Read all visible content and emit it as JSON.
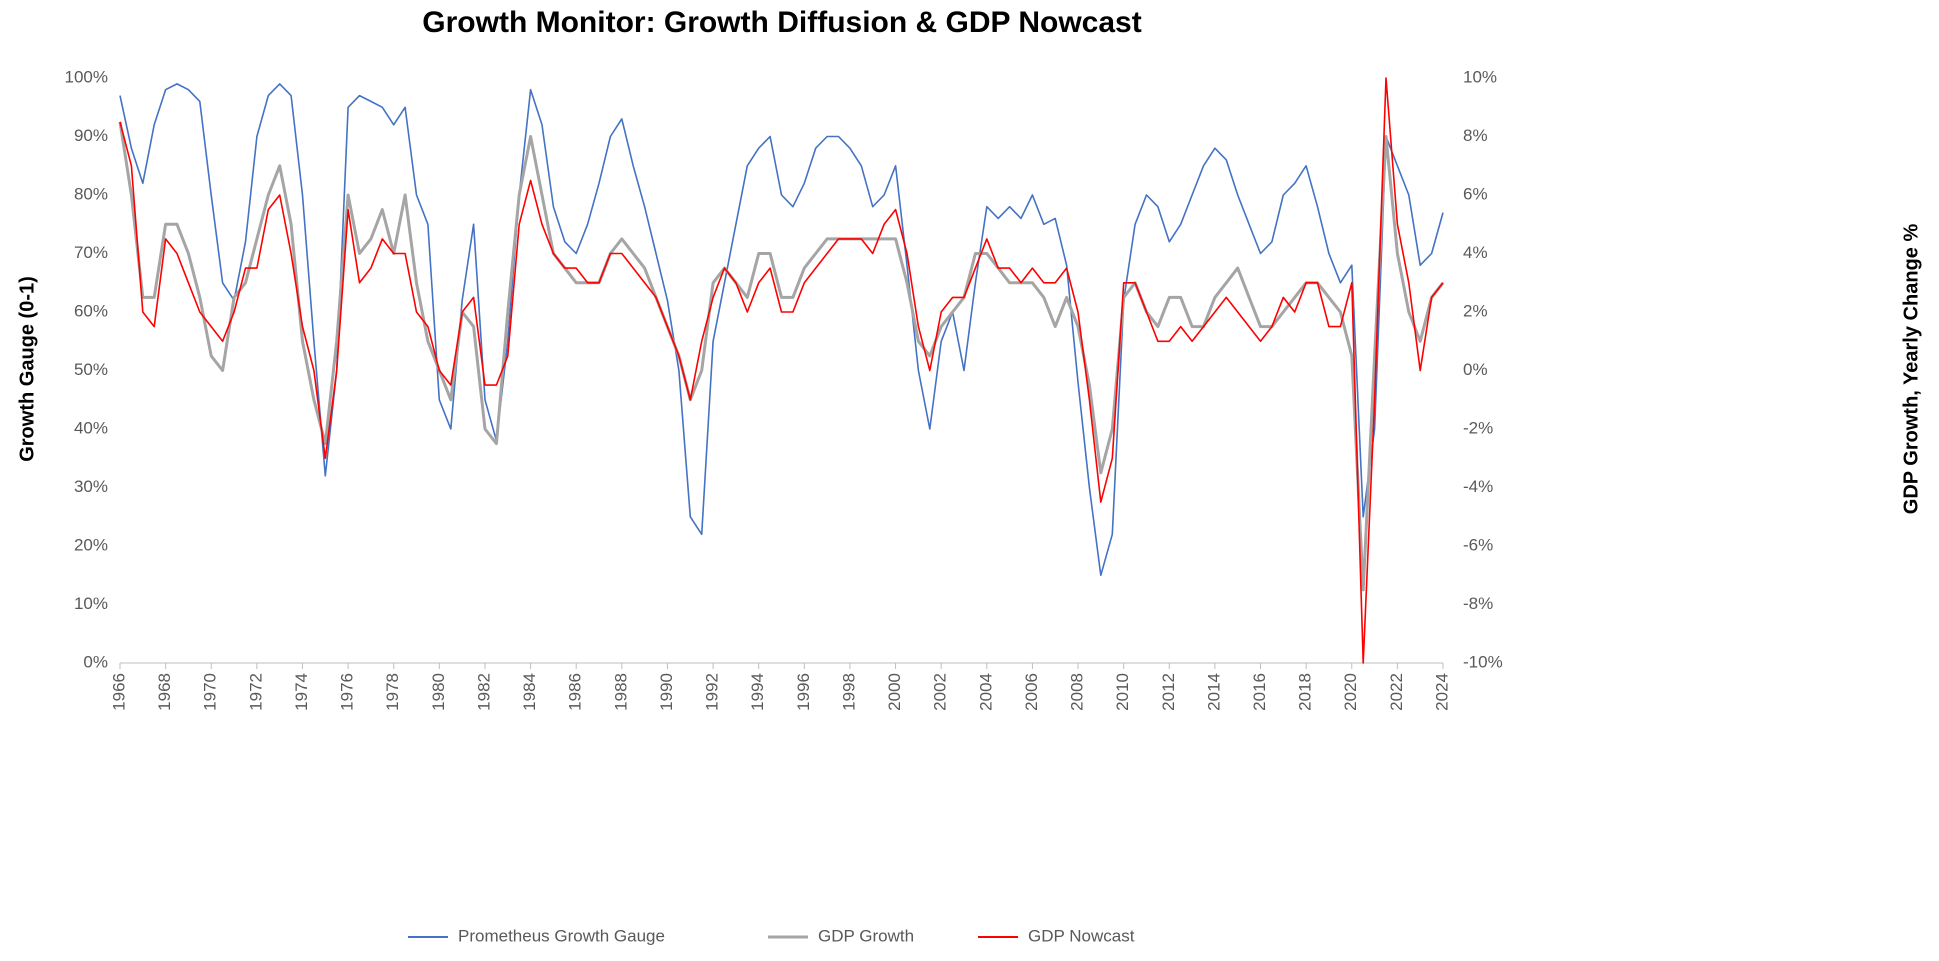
{
  "chart_data": {
    "type": "line",
    "title": "Growth Monitor: Growth Diffusion & GDP Nowcast",
    "ylabel": "Growth Gauge (0-1)",
    "y2label": "GDP Growth, Yearly Change %",
    "x": [
      1966,
      1966.5,
      1967,
      1967.5,
      1968,
      1968.5,
      1969,
      1969.5,
      1970,
      1970.5,
      1971,
      1971.5,
      1972,
      1972.5,
      1973,
      1973.5,
      1974,
      1974.5,
      1975,
      1975.5,
      1976,
      1976.5,
      1977,
      1977.5,
      1978,
      1978.5,
      1979,
      1979.5,
      1980,
      1980.5,
      1981,
      1981.5,
      1982,
      1982.5,
      1983,
      1983.5,
      1984,
      1984.5,
      1985,
      1985.5,
      1986,
      1986.5,
      1987,
      1987.5,
      1988,
      1988.5,
      1989,
      1989.5,
      1990,
      1990.5,
      1991,
      1991.5,
      1992,
      1992.5,
      1993,
      1993.5,
      1994,
      1994.5,
      1995,
      1995.5,
      1996,
      1996.5,
      1997,
      1997.5,
      1998,
      1998.5,
      1999,
      1999.5,
      2000,
      2000.5,
      2001,
      2001.5,
      2002,
      2002.5,
      2003,
      2003.5,
      2004,
      2004.5,
      2005,
      2005.5,
      2006,
      2006.5,
      2007,
      2007.5,
      2008,
      2008.5,
      2009,
      2009.5,
      2010,
      2010.5,
      2011,
      2011.5,
      2012,
      2012.5,
      2013,
      2013.5,
      2014,
      2014.5,
      2015,
      2015.5,
      2016,
      2016.5,
      2017,
      2017.5,
      2018,
      2018.5,
      2019,
      2019.5,
      2020,
      2020.5,
      2021,
      2021.5,
      2022,
      2022.5,
      2023,
      2023.5,
      2024
    ],
    "series": [
      {
        "name": "Prometheus Growth Gauge",
        "color": "#4472c4",
        "axis": "y",
        "values": [
          97,
          88,
          82,
          92,
          98,
          99,
          98,
          96,
          80,
          65,
          62,
          72,
          90,
          97,
          99,
          97,
          80,
          55,
          32,
          50,
          95,
          97,
          96,
          95,
          92,
          95,
          80,
          75,
          45,
          40,
          62,
          75,
          45,
          38,
          55,
          80,
          98,
          92,
          78,
          72,
          70,
          75,
          82,
          90,
          93,
          85,
          78,
          70,
          62,
          50,
          25,
          22,
          55,
          65,
          75,
          85,
          88,
          90,
          80,
          78,
          82,
          88,
          90,
          90,
          88,
          85,
          78,
          80,
          85,
          68,
          50,
          40,
          55,
          60,
          50,
          65,
          78,
          76,
          78,
          76,
          80,
          75,
          76,
          68,
          48,
          30,
          15,
          22,
          62,
          75,
          80,
          78,
          72,
          75,
          80,
          85,
          88,
          86,
          80,
          75,
          70,
          72,
          80,
          82,
          85,
          78,
          70,
          65,
          68,
          25,
          40,
          90,
          85,
          80,
          68,
          70,
          77
        ]
      },
      {
        "name": "GDP Growth",
        "color": "#a5a5a5",
        "axis": "y2",
        "values": [
          8.5,
          6,
          2.5,
          2.5,
          5,
          5,
          4,
          2.5,
          0.5,
          0,
          2.5,
          3,
          4.5,
          6,
          7,
          5,
          1,
          -1,
          -2.5,
          1,
          6,
          4,
          4.5,
          5.5,
          4,
          6,
          3,
          1,
          0,
          -1,
          2,
          1.5,
          -2,
          -2.5,
          2,
          6,
          8,
          6,
          4,
          3.5,
          3,
          3,
          3,
          4,
          4.5,
          4,
          3.5,
          2.5,
          1.5,
          0.5,
          -1,
          0,
          3,
          3.5,
          3,
          2.5,
          4,
          4,
          2.5,
          2.5,
          3.5,
          4,
          4.5,
          4.5,
          4.5,
          4.5,
          4.5,
          4.5,
          4.5,
          3,
          1,
          0.5,
          1.5,
          2,
          2.5,
          4,
          4,
          3.5,
          3,
          3,
          3,
          2.5,
          1.5,
          2.5,
          1.5,
          -0.5,
          -3.5,
          -2,
          2.5,
          3,
          2,
          1.5,
          2.5,
          2.5,
          1.5,
          1.5,
          2.5,
          3,
          3.5,
          2.5,
          1.5,
          1.5,
          2,
          2.5,
          3,
          3,
          2.5,
          2,
          0.5,
          -7.5,
          0.5,
          8,
          4,
          2,
          1,
          2.5,
          3
        ]
      },
      {
        "name": "GDP Nowcast",
        "color": "#ff0000",
        "axis": "y2",
        "values": [
          8.5,
          7,
          2,
          1.5,
          4.5,
          4,
          3,
          2,
          1.5,
          1,
          2,
          3.5,
          3.5,
          5.5,
          6,
          4,
          1.5,
          0,
          -3,
          0,
          5.5,
          3,
          3.5,
          4.5,
          4,
          4,
          2,
          1.5,
          0,
          -0.5,
          2,
          2.5,
          -0.5,
          -0.5,
          0.5,
          5,
          6.5,
          5,
          4,
          3.5,
          3.5,
          3,
          3,
          4,
          4,
          3.5,
          3,
          2.5,
          1.5,
          0.5,
          -1,
          1,
          2.5,
          3.5,
          3,
          2,
          3,
          3.5,
          2,
          2,
          3,
          3.5,
          4,
          4.5,
          4.5,
          4.5,
          4,
          5,
          5.5,
          4,
          1.5,
          0,
          2,
          2.5,
          2.5,
          3.5,
          4.5,
          3.5,
          3.5,
          3,
          3.5,
          3,
          3,
          3.5,
          2,
          -1,
          -4.5,
          -3,
          3,
          3,
          2,
          1,
          1,
          1.5,
          1,
          1.5,
          2,
          2.5,
          2,
          1.5,
          1,
          1.5,
          2.5,
          2,
          3,
          3,
          1.5,
          1.5,
          3,
          -10,
          -1,
          10,
          5,
          3,
          0,
          2.5,
          3
        ]
      }
    ],
    "xlim": [
      1966,
      2024
    ],
    "xticks": [
      1966,
      1968,
      1970,
      1972,
      1974,
      1976,
      1978,
      1980,
      1982,
      1984,
      1986,
      1988,
      1990,
      1992,
      1994,
      1996,
      1998,
      2000,
      2002,
      2004,
      2006,
      2008,
      2010,
      2012,
      2014,
      2016,
      2018,
      2020,
      2022,
      2024
    ],
    "ylim": [
      0,
      100
    ],
    "yticks": [
      {
        "value": 0,
        "label": "0%"
      },
      {
        "value": 10,
        "label": "10%"
      },
      {
        "value": 20,
        "label": "20%"
      },
      {
        "value": 30,
        "label": "30%"
      },
      {
        "value": 40,
        "label": "40%"
      },
      {
        "value": 50,
        "label": "50%"
      },
      {
        "value": 60,
        "label": "60%"
      },
      {
        "value": 70,
        "label": "70%"
      },
      {
        "value": 80,
        "label": "80%"
      },
      {
        "value": 90,
        "label": "90%"
      },
      {
        "value": 100,
        "label": "100%"
      }
    ],
    "y2lim": [
      -10,
      10
    ],
    "y2ticks": [
      {
        "value": -10,
        "label": "-10%"
      },
      {
        "value": -8,
        "label": "-8%"
      },
      {
        "value": -6,
        "label": "-6%"
      },
      {
        "value": -4,
        "label": "-4%"
      },
      {
        "value": -2,
        "label": "-2%"
      },
      {
        "value": 0,
        "label": "0%"
      },
      {
        "value": 2,
        "label": "2%"
      },
      {
        "value": 4,
        "label": "4%"
      },
      {
        "value": 6,
        "label": "6%"
      },
      {
        "value": 8,
        "label": "8%"
      },
      {
        "value": 10,
        "label": "10%"
      }
    ],
    "legend": "bottom"
  }
}
